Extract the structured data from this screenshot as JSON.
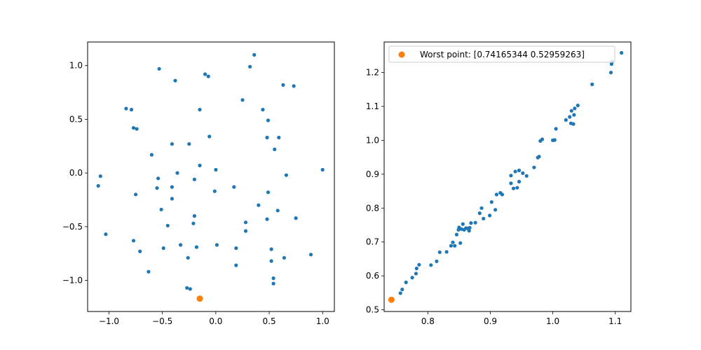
{
  "colors": {
    "points": "#1f77b4",
    "worst": "#ff7f0e",
    "axes": "#000000",
    "background": "#ffffff"
  },
  "chart_data": [
    {
      "type": "scatter",
      "title": "",
      "xlabel": "",
      "ylabel": "",
      "xlim": [
        -1.2,
        1.11
      ],
      "ylim": [
        -1.29,
        1.22
      ],
      "xticks": [
        -1.0,
        -0.5,
        0.0,
        0.5,
        1.0
      ],
      "xtick_labels": [
        "−1.0",
        "−0.5",
        "0.0",
        "0.5",
        "1.0"
      ],
      "yticks": [
        -1.0,
        -0.5,
        0.0,
        0.5,
        1.0
      ],
      "ytick_labels": [
        "−1.0",
        "−0.5",
        "0.0",
        "0.5",
        "1.0"
      ],
      "grid": false,
      "legend": null,
      "points": [
        [
          0.36,
          1.1
        ],
        [
          0.32,
          0.99
        ],
        [
          -0.53,
          0.97
        ],
        [
          -0.1,
          0.92
        ],
        [
          -0.07,
          0.9
        ],
        [
          -0.38,
          0.86
        ],
        [
          0.63,
          0.82
        ],
        [
          0.73,
          0.81
        ],
        [
          0.25,
          0.68
        ],
        [
          -0.84,
          0.6
        ],
        [
          -0.79,
          0.59
        ],
        [
          -0.15,
          0.59
        ],
        [
          0.44,
          0.59
        ],
        [
          0.49,
          0.49
        ],
        [
          -0.77,
          0.42
        ],
        [
          -0.74,
          0.41
        ],
        [
          -0.06,
          0.34
        ],
        [
          0.48,
          0.33
        ],
        [
          0.59,
          0.33
        ],
        [
          -0.41,
          0.27
        ],
        [
          -0.25,
          0.27
        ],
        [
          0.55,
          0.22
        ],
        [
          -0.6,
          0.17
        ],
        [
          -0.15,
          0.07
        ],
        [
          0.0,
          0.03
        ],
        [
          1.0,
          0.03
        ],
        [
          -0.36,
          0.0
        ],
        [
          -1.08,
          -0.03
        ],
        [
          0.66,
          -0.02
        ],
        [
          -0.54,
          -0.05
        ],
        [
          -0.2,
          -0.06
        ],
        [
          -1.1,
          -0.12
        ],
        [
          -0.55,
          -0.14
        ],
        [
          -0.41,
          -0.13
        ],
        [
          0.17,
          -0.13
        ],
        [
          -0.01,
          -0.17
        ],
        [
          0.49,
          -0.18
        ],
        [
          -0.75,
          -0.2
        ],
        [
          -0.41,
          -0.24
        ],
        [
          0.4,
          -0.3
        ],
        [
          -0.51,
          -0.34
        ],
        [
          0.58,
          -0.35
        ],
        [
          -0.2,
          -0.4
        ],
        [
          0.48,
          -0.43
        ],
        [
          0.75,
          -0.42
        ],
        [
          -0.45,
          -0.49
        ],
        [
          -0.21,
          -0.47
        ],
        [
          0.28,
          -0.46
        ],
        [
          0.28,
          -0.54
        ],
        [
          -1.03,
          -0.57
        ],
        [
          -0.77,
          -0.63
        ],
        [
          -0.33,
          -0.67
        ],
        [
          0.01,
          -0.67
        ],
        [
          -0.18,
          -0.69
        ],
        [
          -0.49,
          -0.7
        ],
        [
          0.19,
          -0.7
        ],
        [
          0.52,
          -0.71
        ],
        [
          -0.71,
          -0.73
        ],
        [
          0.89,
          -0.76
        ],
        [
          -0.26,
          -0.79
        ],
        [
          0.64,
          -0.79
        ],
        [
          0.52,
          -0.82
        ],
        [
          0.19,
          -0.86
        ],
        [
          -0.63,
          -0.92
        ],
        [
          0.54,
          -0.98
        ],
        [
          0.54,
          -1.03
        ],
        [
          -0.27,
          -1.07
        ],
        [
          -0.24,
          -1.08
        ]
      ],
      "highlight": {
        "label": "",
        "point": [
          -0.15,
          -1.17
        ]
      }
    },
    {
      "type": "scatter",
      "title": "",
      "xlabel": "",
      "ylabel": "",
      "xlim": [
        0.73,
        1.125
      ],
      "ylim": [
        0.495,
        1.29
      ],
      "xticks": [
        0.8,
        0.9,
        1.0,
        1.1
      ],
      "xtick_labels": [
        "0.8",
        "0.9",
        "1.0",
        "1.1"
      ],
      "yticks": [
        0.5,
        0.6,
        0.7,
        0.8,
        0.9,
        1.0,
        1.1,
        1.2
      ],
      "ytick_labels": [
        "0.5",
        "0.6",
        "0.7",
        "0.8",
        "0.9",
        "1.0",
        "1.1",
        "1.2"
      ],
      "grid": false,
      "legend": "top-left",
      "points": [
        [
          0.756,
          0.549
        ],
        [
          0.759,
          0.56
        ],
        [
          0.765,
          0.581
        ],
        [
          0.775,
          0.595
        ],
        [
          0.781,
          0.607
        ],
        [
          0.782,
          0.622
        ],
        [
          0.786,
          0.633
        ],
        [
          0.805,
          0.632
        ],
        [
          0.814,
          0.643
        ],
        [
          0.819,
          0.67
        ],
        [
          0.83,
          0.671
        ],
        [
          0.837,
          0.689
        ],
        [
          0.84,
          0.699
        ],
        [
          0.843,
          0.689
        ],
        [
          0.846,
          0.722
        ],
        [
          0.849,
          0.736
        ],
        [
          0.85,
          0.743
        ],
        [
          0.852,
          0.697
        ],
        [
          0.854,
          0.738
        ],
        [
          0.856,
          0.753
        ],
        [
          0.858,
          0.736
        ],
        [
          0.861,
          0.741
        ],
        [
          0.864,
          0.74
        ],
        [
          0.866,
          0.733
        ],
        [
          0.867,
          0.742
        ],
        [
          0.869,
          0.756
        ],
        [
          0.876,
          0.757
        ],
        [
          0.883,
          0.785
        ],
        [
          0.886,
          0.8
        ],
        [
          0.889,
          0.769
        ],
        [
          0.899,
          0.778
        ],
        [
          0.902,
          0.818
        ],
        [
          0.908,
          0.795
        ],
        [
          0.91,
          0.84
        ],
        [
          0.916,
          0.845
        ],
        [
          0.919,
          0.84
        ],
        [
          0.933,
          0.873
        ],
        [
          0.933,
          0.896
        ],
        [
          0.937,
          0.858
        ],
        [
          0.94,
          0.908
        ],
        [
          0.943,
          0.86
        ],
        [
          0.946,
          0.878
        ],
        [
          0.946,
          0.911
        ],
        [
          0.952,
          0.903
        ],
        [
          0.958,
          0.895
        ],
        [
          0.97,
          0.92
        ],
        [
          0.976,
          0.949
        ],
        [
          0.978,
          0.952
        ],
        [
          0.98,
          0.998
        ],
        [
          0.983,
          1.003
        ],
        [
          1.0,
          1.0
        ],
        [
          1.003,
          1.001
        ],
        [
          1.005,
          1.034
        ],
        [
          1.021,
          1.06
        ],
        [
          1.027,
          1.069
        ],
        [
          1.029,
          1.05
        ],
        [
          1.03,
          1.087
        ],
        [
          1.033,
          1.048
        ],
        [
          1.034,
          1.075
        ],
        [
          1.035,
          1.094
        ],
        [
          1.04,
          1.103
        ],
        [
          1.063,
          1.165
        ],
        [
          1.093,
          1.2
        ],
        [
          1.094,
          1.225
        ],
        [
          1.095,
          1.232
        ],
        [
          1.11,
          1.258
        ]
      ],
      "highlight": {
        "label": "Worst point: [0.74165344 0.52959263]",
        "point": [
          0.7417,
          0.5296
        ]
      }
    }
  ]
}
